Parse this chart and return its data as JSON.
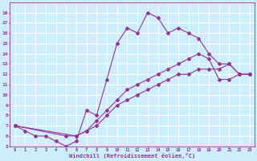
{
  "xlabel": "Windchill (Refroidissement éolien,°C)",
  "bg_color": "#cceeff",
  "grid_color": "#ffffff",
  "line_color": "#993399",
  "xlim": [
    -0.5,
    23.5
  ],
  "ylim": [
    5,
    19
  ],
  "xticks": [
    0,
    1,
    2,
    3,
    4,
    5,
    6,
    7,
    8,
    9,
    10,
    11,
    12,
    13,
    14,
    15,
    16,
    17,
    18,
    19,
    20,
    21,
    22,
    23
  ],
  "yticks": [
    5,
    6,
    7,
    8,
    9,
    10,
    11,
    12,
    13,
    14,
    15,
    16,
    17,
    18
  ],
  "series1_x": [
    0,
    1,
    2,
    3,
    4,
    5,
    6,
    7,
    8,
    9,
    10,
    11,
    12,
    13,
    14,
    15,
    16,
    17,
    18,
    19,
    20,
    21,
    22,
    23
  ],
  "series1_y": [
    7.0,
    6.5,
    6.0,
    6.0,
    5.5,
    5.0,
    5.5,
    8.5,
    8.0,
    11.5,
    15.0,
    16.5,
    16.0,
    18.0,
    17.5,
    16.0,
    16.5,
    16.0,
    15.5,
    14.0,
    13.0,
    13.0,
    12.0,
    12.0
  ],
  "series2_x": [
    0,
    6,
    7,
    8,
    9,
    10,
    11,
    12,
    13,
    14,
    15,
    16,
    17,
    18,
    19,
    20,
    21,
    22,
    23
  ],
  "series2_y": [
    7.0,
    6.0,
    6.5,
    7.0,
    8.0,
    9.0,
    9.5,
    10.0,
    10.5,
    11.0,
    11.5,
    12.0,
    12.0,
    12.5,
    12.5,
    12.5,
    13.0,
    12.0,
    12.0
  ],
  "series3_x": [
    0,
    5,
    6,
    7,
    8,
    9,
    10,
    11,
    12,
    13,
    14,
    15,
    16,
    17,
    18,
    19,
    20,
    21,
    22,
    23
  ],
  "series3_y": [
    7.0,
    6.0,
    6.0,
    6.5,
    7.5,
    8.5,
    9.5,
    10.5,
    11.0,
    11.5,
    12.0,
    12.5,
    13.0,
    13.5,
    14.0,
    13.5,
    11.5,
    11.5,
    12.0,
    12.0
  ]
}
